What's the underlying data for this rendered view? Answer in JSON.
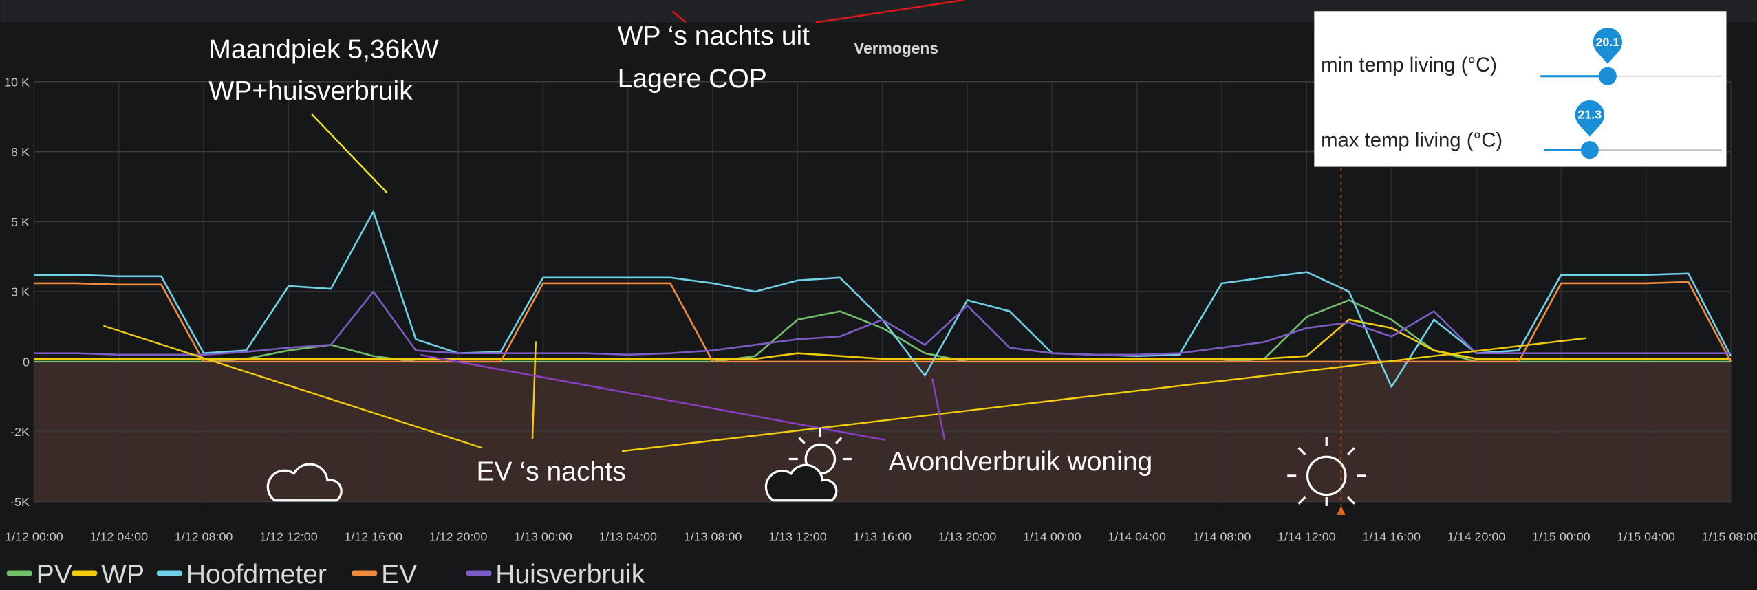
{
  "chart_data": {
    "type": "line",
    "title": "Vermogens",
    "categories": [
      "1/12 00:00",
      null,
      "1/12 04:00",
      null,
      "1/12 08:00",
      null,
      "1/12 12:00",
      null,
      "1/12 16:00",
      null,
      "1/12 20:00",
      null,
      "1/13 00:00",
      null,
      "1/13 04:00",
      null,
      "1/13 08:00",
      null,
      "1/13 12:00",
      null,
      "1/13 16:00",
      null,
      "1/13 20:00",
      null,
      "1/14 00:00",
      null,
      "1/14 04:00",
      null,
      "1/14 08:00",
      null,
      "1/14 12:00",
      null,
      "1/14 16:00",
      null,
      "1/14 20:00",
      null,
      "1/15 00:00",
      null,
      "1/15 04:00",
      null,
      "1/15 08:00"
    ],
    "series": [
      {
        "name": "PV",
        "color": "#73bf69",
        "values": [
          0,
          0,
          0,
          0,
          0,
          100,
          400,
          600,
          200,
          0,
          0,
          0,
          0,
          0,
          0,
          0,
          0,
          200,
          1500,
          1800,
          1200,
          300,
          0,
          0,
          0,
          0,
          0,
          0,
          0,
          100,
          1600,
          2200,
          1500,
          400,
          0,
          0,
          0,
          0,
          0,
          0,
          0
        ]
      },
      {
        "name": "WP",
        "color": "#f2cc0c",
        "values": [
          100,
          100,
          100,
          100,
          100,
          100,
          100,
          100,
          100,
          100,
          100,
          100,
          100,
          100,
          100,
          100,
          100,
          100,
          300,
          200,
          100,
          100,
          100,
          100,
          100,
          100,
          100,
          100,
          100,
          100,
          200,
          1500,
          1200,
          400,
          100,
          100,
          100,
          100,
          100,
          100,
          100
        ]
      },
      {
        "name": "Hoofdmeter",
        "color": "#6fd0e6",
        "values": [
          3100,
          3100,
          3050,
          3050,
          300,
          400,
          2700,
          2600,
          5360,
          800,
          300,
          350,
          3000,
          3000,
          3000,
          3000,
          2800,
          2500,
          2900,
          3000,
          1500,
          -500,
          2200,
          1800,
          300,
          250,
          200,
          250,
          2800,
          3000,
          3200,
          2500,
          -900,
          1500,
          300,
          400,
          3100,
          3100,
          3100,
          3150,
          200
        ]
      },
      {
        "name": "EV",
        "color": "#f08a3c",
        "values": [
          2800,
          2800,
          2750,
          2750,
          0,
          0,
          0,
          0,
          0,
          0,
          0,
          0,
          2800,
          2800,
          2800,
          2800,
          0,
          0,
          0,
          0,
          0,
          0,
          0,
          0,
          0,
          0,
          0,
          0,
          0,
          0,
          0,
          0,
          0,
          0,
          0,
          0,
          2800,
          2800,
          2800,
          2850,
          0
        ]
      },
      {
        "name": "Huisverbruik",
        "color": "#7c5cc4",
        "values": [
          300,
          300,
          250,
          250,
          250,
          350,
          500,
          600,
          2500,
          400,
          300,
          300,
          300,
          300,
          250,
          300,
          400,
          600,
          800,
          900,
          1500,
          600,
          2000,
          500,
          300,
          250,
          250,
          300,
          500,
          700,
          1200,
          1400,
          900,
          1800,
          300,
          300,
          300,
          300,
          300,
          300,
          300
        ]
      }
    ],
    "ylim": [
      -5000,
      10000
    ],
    "yticks": [
      {
        "value": 10000,
        "label": "10 K"
      },
      {
        "value": 7500,
        "label": "8 K"
      },
      {
        "value": 5000,
        "label": "5 K"
      },
      {
        "value": 2500,
        "label": "3 K"
      },
      0,
      {
        "value": -2500,
        "label": "-2K"
      },
      {
        "value": -5000,
        "label": "-5K"
      }
    ],
    "grid": true,
    "annotations": [
      "Maandpiek 5,36kW",
      "WP+huisverbruik",
      "WP ‘s nachts uit",
      "Lagere COP",
      "EV ‘s nachts",
      "Avondverbruik woning"
    ]
  },
  "controls": [
    {
      "label": "min temp living (°C)",
      "value": 20.1
    },
    {
      "label": "max temp living (°C)",
      "value": 21.3
    }
  ]
}
